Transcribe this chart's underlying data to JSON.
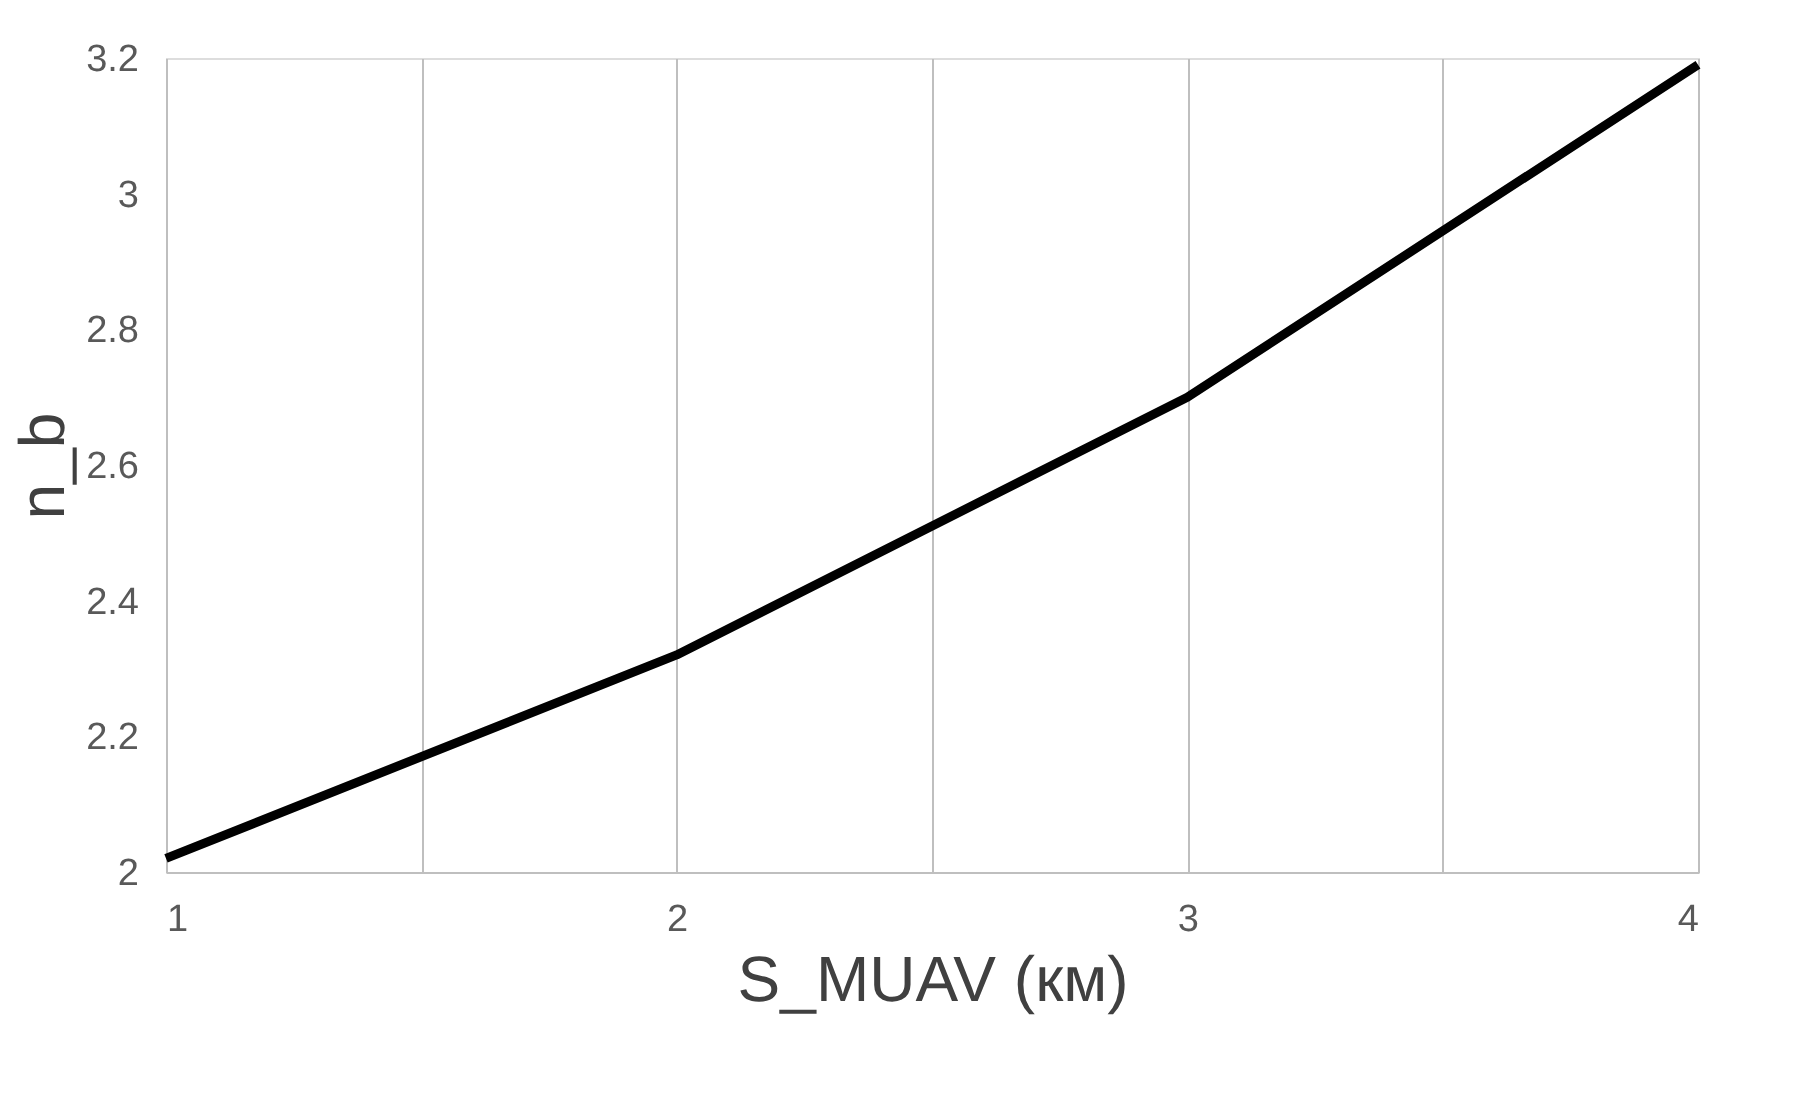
{
  "chart_data": {
    "type": "line",
    "xlabel": "S_MUAV (км)",
    "ylabel": "n_b",
    "x": [
      1,
      2,
      3,
      4
    ],
    "series": [
      {
        "color": "#000000",
        "values": [
          2.02,
          2.32,
          2.7,
          3.19
        ]
      }
    ],
    "xlim": [
      1,
      4
    ],
    "ylim": [
      2,
      3.2
    ],
    "xticks": [
      1,
      {
        "value": 1.5,
        "label": null
      },
      2,
      {
        "value": 2.5,
        "label": null
      },
      3,
      {
        "value": 3.5,
        "label": null
      },
      4
    ],
    "yticks": [
      2,
      2.2,
      2.4,
      2.6,
      2.8,
      3,
      3.2
    ],
    "grid": "x",
    "legend": false,
    "marker": "none",
    "line_style": "solid"
  }
}
